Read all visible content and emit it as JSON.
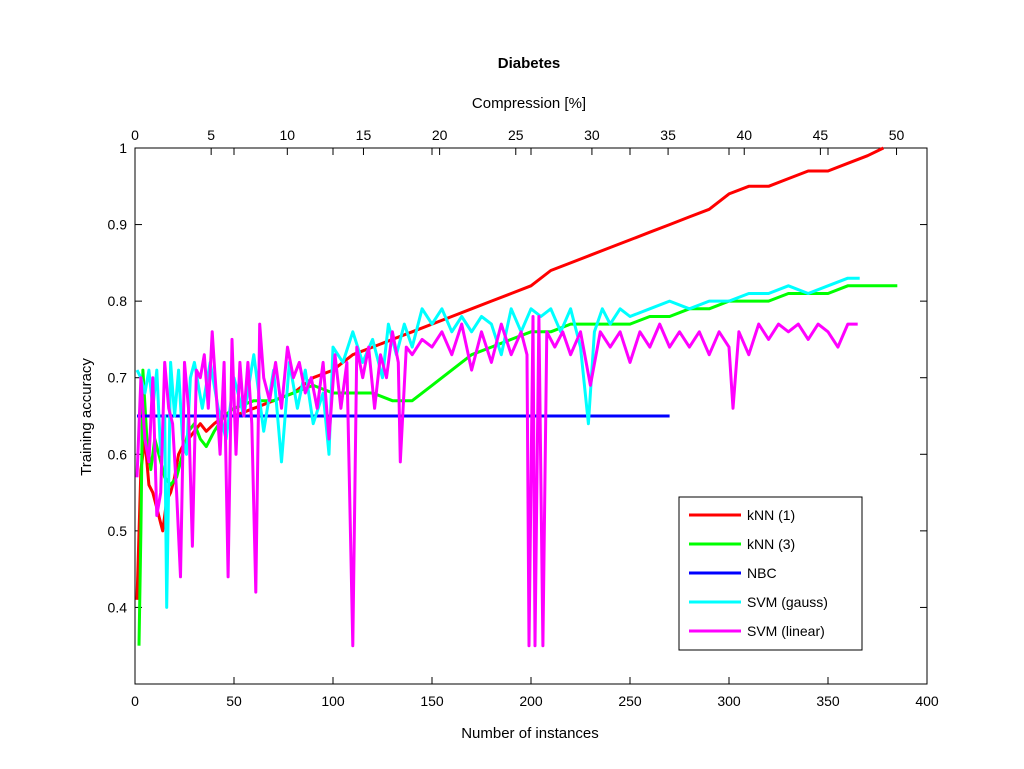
{
  "chart_data": {
    "type": "line",
    "title": "Diabetes",
    "xlabel": "Number of instances",
    "ylabel": "Training accuracy",
    "x2label": "Compression [%]",
    "xlim": [
      0,
      400
    ],
    "ylim": [
      0.3,
      1.0
    ],
    "x2lim": [
      0,
      52
    ],
    "xticks": [
      "0",
      "50",
      "100",
      "150",
      "200",
      "250",
      "300",
      "350",
      "400"
    ],
    "yticks": [
      "0.4",
      "0.5",
      "0.6",
      "0.7",
      "0.8",
      "0.9",
      "1"
    ],
    "x2ticks": [
      "0",
      "5",
      "10",
      "15",
      "20",
      "25",
      "30",
      "35",
      "40",
      "45",
      "50"
    ],
    "grid": false,
    "legend_position": "bottom-right",
    "series": [
      {
        "name": "kNN (1)",
        "color": "#ff0000",
        "points": [
          [
            1,
            0.41
          ],
          [
            3,
            0.58
          ],
          [
            5,
            0.62
          ],
          [
            7,
            0.56
          ],
          [
            9,
            0.55
          ],
          [
            11,
            0.53
          ],
          [
            13,
            0.51
          ],
          [
            14,
            0.5
          ],
          [
            16,
            0.54
          ],
          [
            18,
            0.55
          ],
          [
            20,
            0.57
          ],
          [
            22,
            0.6
          ],
          [
            24,
            0.61
          ],
          [
            27,
            0.62
          ],
          [
            30,
            0.63
          ],
          [
            33,
            0.64
          ],
          [
            36,
            0.63
          ],
          [
            40,
            0.64
          ],
          [
            45,
            0.65
          ],
          [
            50,
            0.65
          ],
          [
            60,
            0.66
          ],
          [
            70,
            0.67
          ],
          [
            80,
            0.68
          ],
          [
            90,
            0.7
          ],
          [
            100,
            0.71
          ],
          [
            110,
            0.73
          ],
          [
            120,
            0.74
          ],
          [
            130,
            0.75
          ],
          [
            140,
            0.76
          ],
          [
            150,
            0.77
          ],
          [
            160,
            0.78
          ],
          [
            170,
            0.79
          ],
          [
            180,
            0.8
          ],
          [
            190,
            0.81
          ],
          [
            200,
            0.82
          ],
          [
            210,
            0.84
          ],
          [
            220,
            0.85
          ],
          [
            230,
            0.86
          ],
          [
            240,
            0.87
          ],
          [
            250,
            0.88
          ],
          [
            260,
            0.89
          ],
          [
            270,
            0.9
          ],
          [
            280,
            0.91
          ],
          [
            290,
            0.92
          ],
          [
            300,
            0.94
          ],
          [
            310,
            0.95
          ],
          [
            320,
            0.95
          ],
          [
            330,
            0.96
          ],
          [
            340,
            0.97
          ],
          [
            350,
            0.97
          ],
          [
            360,
            0.98
          ],
          [
            370,
            0.99
          ],
          [
            378,
            1.0
          ]
        ]
      },
      {
        "name": "kNN (3)",
        "color": "#00ff00",
        "points": [
          [
            2,
            0.35
          ],
          [
            3,
            0.5
          ],
          [
            4,
            0.71
          ],
          [
            6,
            0.62
          ],
          [
            8,
            0.58
          ],
          [
            10,
            0.62
          ],
          [
            12,
            0.6
          ],
          [
            15,
            0.57
          ],
          [
            18,
            0.56
          ],
          [
            21,
            0.57
          ],
          [
            24,
            0.6
          ],
          [
            27,
            0.63
          ],
          [
            30,
            0.64
          ],
          [
            33,
            0.62
          ],
          [
            36,
            0.61
          ],
          [
            40,
            0.63
          ],
          [
            45,
            0.65
          ],
          [
            50,
            0.66
          ],
          [
            60,
            0.67
          ],
          [
            70,
            0.67
          ],
          [
            80,
            0.68
          ],
          [
            90,
            0.69
          ],
          [
            100,
            0.68
          ],
          [
            110,
            0.68
          ],
          [
            120,
            0.68
          ],
          [
            130,
            0.67
          ],
          [
            140,
            0.67
          ],
          [
            150,
            0.69
          ],
          [
            160,
            0.71
          ],
          [
            170,
            0.73
          ],
          [
            180,
            0.74
          ],
          [
            190,
            0.75
          ],
          [
            200,
            0.76
          ],
          [
            210,
            0.76
          ],
          [
            220,
            0.77
          ],
          [
            230,
            0.77
          ],
          [
            240,
            0.77
          ],
          [
            250,
            0.77
          ],
          [
            260,
            0.78
          ],
          [
            270,
            0.78
          ],
          [
            280,
            0.79
          ],
          [
            290,
            0.79
          ],
          [
            300,
            0.8
          ],
          [
            310,
            0.8
          ],
          [
            320,
            0.8
          ],
          [
            330,
            0.81
          ],
          [
            340,
            0.81
          ],
          [
            350,
            0.81
          ],
          [
            360,
            0.82
          ],
          [
            370,
            0.82
          ],
          [
            380,
            0.82
          ],
          [
            385,
            0.82
          ]
        ]
      },
      {
        "name": "NBC",
        "color": "#0000ff",
        "points": [
          [
            1,
            0.65
          ],
          [
            270,
            0.65
          ]
        ]
      },
      {
        "name": "SVM (gauss)",
        "color": "#00ffff",
        "points": [
          [
            1,
            0.71
          ],
          [
            3,
            0.7
          ],
          [
            5,
            0.68
          ],
          [
            7,
            0.71
          ],
          [
            9,
            0.66
          ],
          [
            11,
            0.71
          ],
          [
            13,
            0.6
          ],
          [
            15,
            0.65
          ],
          [
            16,
            0.4
          ],
          [
            18,
            0.72
          ],
          [
            20,
            0.65
          ],
          [
            22,
            0.71
          ],
          [
            24,
            0.62
          ],
          [
            26,
            0.6
          ],
          [
            28,
            0.7
          ],
          [
            30,
            0.72
          ],
          [
            34,
            0.66
          ],
          [
            38,
            0.72
          ],
          [
            42,
            0.66
          ],
          [
            46,
            0.62
          ],
          [
            50,
            0.7
          ],
          [
            55,
            0.65
          ],
          [
            60,
            0.73
          ],
          [
            65,
            0.63
          ],
          [
            70,
            0.71
          ],
          [
            74,
            0.59
          ],
          [
            78,
            0.72
          ],
          [
            82,
            0.66
          ],
          [
            86,
            0.71
          ],
          [
            90,
            0.64
          ],
          [
            95,
            0.68
          ],
          [
            98,
            0.6
          ],
          [
            100,
            0.74
          ],
          [
            105,
            0.72
          ],
          [
            110,
            0.76
          ],
          [
            115,
            0.72
          ],
          [
            120,
            0.75
          ],
          [
            125,
            0.7
          ],
          [
            128,
            0.77
          ],
          [
            132,
            0.73
          ],
          [
            136,
            0.77
          ],
          [
            140,
            0.74
          ],
          [
            145,
            0.79
          ],
          [
            150,
            0.77
          ],
          [
            155,
            0.79
          ],
          [
            160,
            0.76
          ],
          [
            165,
            0.78
          ],
          [
            170,
            0.76
          ],
          [
            175,
            0.78
          ],
          [
            180,
            0.77
          ],
          [
            185,
            0.73
          ],
          [
            190,
            0.79
          ],
          [
            195,
            0.76
          ],
          [
            200,
            0.79
          ],
          [
            205,
            0.78
          ],
          [
            210,
            0.79
          ],
          [
            215,
            0.76
          ],
          [
            220,
            0.79
          ],
          [
            225,
            0.74
          ],
          [
            229,
            0.64
          ],
          [
            232,
            0.76
          ],
          [
            236,
            0.79
          ],
          [
            240,
            0.77
          ],
          [
            245,
            0.79
          ],
          [
            250,
            0.78
          ],
          [
            260,
            0.79
          ],
          [
            270,
            0.8
          ],
          [
            280,
            0.79
          ],
          [
            290,
            0.8
          ],
          [
            300,
            0.8
          ],
          [
            310,
            0.81
          ],
          [
            320,
            0.81
          ],
          [
            330,
            0.82
          ],
          [
            340,
            0.81
          ],
          [
            350,
            0.82
          ],
          [
            360,
            0.83
          ],
          [
            366,
            0.83
          ]
        ]
      },
      {
        "name": "SVM (linear)",
        "color": "#ff00ff",
        "points": [
          [
            1,
            0.57
          ],
          [
            3,
            0.7
          ],
          [
            5,
            0.62
          ],
          [
            7,
            0.59
          ],
          [
            9,
            0.7
          ],
          [
            11,
            0.52
          ],
          [
            13,
            0.55
          ],
          [
            15,
            0.72
          ],
          [
            17,
            0.66
          ],
          [
            19,
            0.64
          ],
          [
            21,
            0.55
          ],
          [
            23,
            0.44
          ],
          [
            25,
            0.72
          ],
          [
            27,
            0.66
          ],
          [
            29,
            0.48
          ],
          [
            31,
            0.71
          ],
          [
            33,
            0.7
          ],
          [
            35,
            0.73
          ],
          [
            37,
            0.66
          ],
          [
            39,
            0.76
          ],
          [
            41,
            0.68
          ],
          [
            43,
            0.6
          ],
          [
            45,
            0.72
          ],
          [
            47,
            0.44
          ],
          [
            49,
            0.75
          ],
          [
            51,
            0.6
          ],
          [
            53,
            0.72
          ],
          [
            55,
            0.65
          ],
          [
            57,
            0.72
          ],
          [
            59,
            0.64
          ],
          [
            61,
            0.42
          ],
          [
            63,
            0.77
          ],
          [
            65,
            0.7
          ],
          [
            68,
            0.67
          ],
          [
            71,
            0.72
          ],
          [
            74,
            0.66
          ],
          [
            77,
            0.74
          ],
          [
            80,
            0.7
          ],
          [
            83,
            0.72
          ],
          [
            86,
            0.68
          ],
          [
            89,
            0.7
          ],
          [
            92,
            0.66
          ],
          [
            95,
            0.72
          ],
          [
            98,
            0.62
          ],
          [
            101,
            0.73
          ],
          [
            104,
            0.66
          ],
          [
            107,
            0.72
          ],
          [
            110,
            0.35
          ],
          [
            112,
            0.74
          ],
          [
            115,
            0.7
          ],
          [
            118,
            0.74
          ],
          [
            121,
            0.66
          ],
          [
            124,
            0.73
          ],
          [
            127,
            0.7
          ],
          [
            130,
            0.76
          ],
          [
            133,
            0.72
          ],
          [
            134,
            0.59
          ],
          [
            137,
            0.74
          ],
          [
            140,
            0.73
          ],
          [
            145,
            0.75
          ],
          [
            150,
            0.74
          ],
          [
            155,
            0.76
          ],
          [
            160,
            0.73
          ],
          [
            165,
            0.77
          ],
          [
            170,
            0.71
          ],
          [
            175,
            0.76
          ],
          [
            180,
            0.72
          ],
          [
            185,
            0.77
          ],
          [
            190,
            0.73
          ],
          [
            195,
            0.76
          ],
          [
            198,
            0.73
          ],
          [
            199,
            0.35
          ],
          [
            201,
            0.78
          ],
          [
            202,
            0.35
          ],
          [
            204,
            0.78
          ],
          [
            206,
            0.35
          ],
          [
            208,
            0.76
          ],
          [
            212,
            0.74
          ],
          [
            216,
            0.76
          ],
          [
            220,
            0.73
          ],
          [
            225,
            0.76
          ],
          [
            230,
            0.69
          ],
          [
            235,
            0.76
          ],
          [
            240,
            0.74
          ],
          [
            245,
            0.76
          ],
          [
            250,
            0.72
          ],
          [
            255,
            0.76
          ],
          [
            260,
            0.74
          ],
          [
            265,
            0.77
          ],
          [
            270,
            0.74
          ],
          [
            275,
            0.76
          ],
          [
            280,
            0.74
          ],
          [
            285,
            0.76
          ],
          [
            290,
            0.73
          ],
          [
            295,
            0.76
          ],
          [
            300,
            0.74
          ],
          [
            302,
            0.66
          ],
          [
            305,
            0.76
          ],
          [
            310,
            0.73
          ],
          [
            315,
            0.77
          ],
          [
            320,
            0.75
          ],
          [
            325,
            0.77
          ],
          [
            330,
            0.76
          ],
          [
            335,
            0.77
          ],
          [
            340,
            0.75
          ],
          [
            345,
            0.77
          ],
          [
            350,
            0.76
          ],
          [
            355,
            0.74
          ],
          [
            360,
            0.77
          ],
          [
            365,
            0.77
          ]
        ]
      }
    ]
  }
}
